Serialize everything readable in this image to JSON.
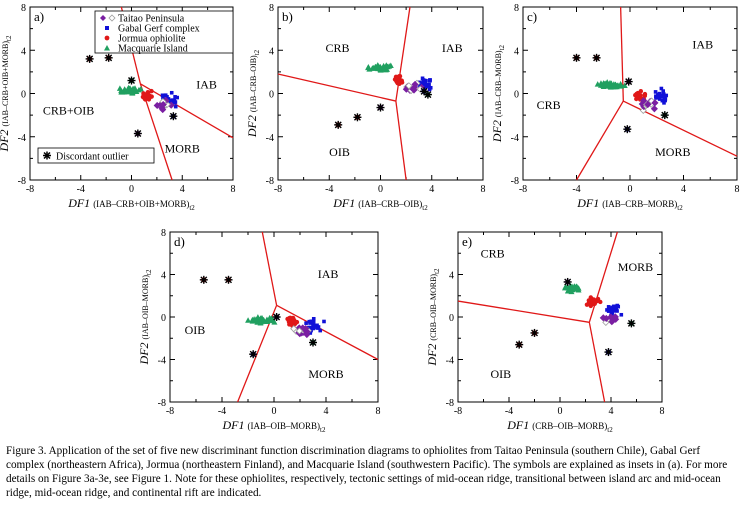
{
  "figure": {
    "legend": {
      "items": [
        {
          "label": "Taitao Peninsula",
          "marker": "diamond-open"
        },
        {
          "label": "Gabal Gerf complex",
          "marker": "square-filled"
        },
        {
          "label": "Jormua ophiolite",
          "marker": "circle-filled"
        },
        {
          "label": "Macquarie Island",
          "marker": "triangle-filled"
        }
      ],
      "outlier_label": "Discordant outlier"
    },
    "colors": {
      "taitao": "#7a1fa2",
      "taitao_open": "#9e9e9e",
      "gabal": "#1010d8",
      "jormua": "#e01818",
      "macquarie": "#20a060",
      "boundary": "#e01818",
      "outlier": "#000000"
    }
  },
  "chart_data": [
    {
      "type": "scatter",
      "panel": "a)",
      "xlabel": {
        "main": "DF1",
        "sub": "(IAB–CRB+OIB+MORB)",
        "suffix": "t2"
      },
      "ylabel": {
        "main": "DF2",
        "sub": "(IAB–CRB+OIB+MORB)",
        "suffix": "t2"
      },
      "xlim": [
        -8,
        8
      ],
      "ylim": [
        -8,
        8
      ],
      "xticks": [
        "-8",
        "-4",
        "0",
        "4",
        "8"
      ],
      "yticks": [
        "8",
        "4",
        "0",
        "-4",
        "-8"
      ],
      "regions": [
        "IAB",
        "CRB+OIB",
        "MORB"
      ],
      "boundaries": [
        [
          [
            0.7,
            0.9
          ],
          [
            -0.8,
            8
          ]
        ],
        [
          [
            0.7,
            0.9
          ],
          [
            8,
            -4.1
          ]
        ],
        [
          [
            0.7,
            0.9
          ],
          [
            3.2,
            -8
          ]
        ]
      ],
      "outliers": [
        [
          -3.3,
          3.2
        ],
        [
          -1.8,
          3.3
        ],
        [
          0.5,
          -3.7
        ],
        [
          3.3,
          -2.1
        ],
        [
          0,
          1.2
        ]
      ]
    },
    {
      "type": "scatter",
      "panel": "b)",
      "xlabel": {
        "main": "DF1",
        "sub": "(IAB–CRB–OIB)",
        "suffix": "t2"
      },
      "ylabel": {
        "main": "DF2",
        "sub": "(IAB–CRB–OIB)",
        "suffix": "t2"
      },
      "xlim": [
        -8,
        8
      ],
      "ylim": [
        -8,
        8
      ],
      "xticks": [
        "-8",
        "-4",
        "0",
        "4",
        "8"
      ],
      "yticks": [
        "8",
        "4",
        "0",
        "-4",
        "-8"
      ],
      "regions": [
        "CRB",
        "IAB",
        "OIB"
      ],
      "boundaries": [
        [
          [
            1.2,
            -0.7
          ],
          [
            -8,
            1.8
          ]
        ],
        [
          [
            1.2,
            -0.7
          ],
          [
            2.3,
            8
          ]
        ],
        [
          [
            1.2,
            -0.7
          ],
          [
            2.0,
            -8
          ]
        ]
      ],
      "outliers": [
        [
          -3.3,
          -2.9
        ],
        [
          -1.8,
          -2.2
        ],
        [
          0,
          -1.3
        ],
        [
          3.4,
          0.2
        ],
        [
          3.7,
          -0.1
        ]
      ]
    },
    {
      "type": "scatter",
      "panel": "c)",
      "xlabel": {
        "main": "DF1",
        "sub": "(IAB–CRB–MORB)",
        "suffix": "t2"
      },
      "ylabel": {
        "main": "DF2",
        "sub": "(IAB–CRB–MORB)",
        "suffix": "t2"
      },
      "xlim": [
        -8,
        8
      ],
      "ylim": [
        -8,
        8
      ],
      "xticks": [
        "-8",
        "-4",
        "0",
        "4",
        "8"
      ],
      "yticks": [
        "8",
        "4",
        "0",
        "-4",
        "-8"
      ],
      "regions": [
        "IAB",
        "CRB",
        "MORB"
      ],
      "boundaries": [
        [
          [
            -0.5,
            -0.7
          ],
          [
            -0.7,
            8
          ]
        ],
        [
          [
            -0.5,
            -0.7
          ],
          [
            8,
            -5.8
          ]
        ],
        [
          [
            -0.5,
            -0.7
          ],
          [
            -4.0,
            -8
          ]
        ]
      ],
      "outliers": [
        [
          -4.0,
          3.3
        ],
        [
          -2.5,
          3.3
        ],
        [
          -0.1,
          1.1
        ],
        [
          -0.2,
          -3.3
        ],
        [
          2.6,
          -2.0
        ]
      ]
    },
    {
      "type": "scatter",
      "panel": "d)",
      "xlabel": {
        "main": "DF1",
        "sub": "(IAB–OIB–MORB)",
        "suffix": "t2"
      },
      "ylabel": {
        "main": "DF2",
        "sub": "(IAB–OIB–MORB)",
        "suffix": "t2"
      },
      "xlim": [
        -8,
        8
      ],
      "ylim": [
        -8,
        8
      ],
      "xticks": [
        "-8",
        "-4",
        "0",
        "4",
        "8"
      ],
      "yticks": [
        "8",
        "4",
        "0",
        "-4",
        "-8"
      ],
      "regions": [
        "IAB",
        "OIB",
        "MORB"
      ],
      "boundaries": [
        [
          [
            0.2,
            1.1
          ],
          [
            -0.9,
            8
          ]
        ],
        [
          [
            0.2,
            1.1
          ],
          [
            8,
            -4.0
          ]
        ],
        [
          [
            0.2,
            1.1
          ],
          [
            -2.8,
            -8
          ]
        ]
      ],
      "outliers": [
        [
          -5.4,
          3.5
        ],
        [
          -3.5,
          3.5
        ],
        [
          0.2,
          0
        ],
        [
          -1.6,
          -3.5
        ],
        [
          3.0,
          -2.4
        ]
      ]
    },
    {
      "type": "scatter",
      "panel": "e)",
      "xlabel": {
        "main": "DF1",
        "sub": "(CRB–OIB–MORB)",
        "suffix": "t2"
      },
      "ylabel": {
        "main": "DF2",
        "sub": "(CRB–OIB–MORB)",
        "suffix": "t2"
      },
      "xlim": [
        -8,
        8
      ],
      "ylim": [
        -8,
        8
      ],
      "xticks": [
        "-8",
        "-4",
        "0",
        "4",
        "8"
      ],
      "yticks": [
        "4",
        "0",
        "-4",
        "-8"
      ],
      "regions": [
        "CRB",
        "MORB",
        "OIB"
      ],
      "boundaries": [
        [
          [
            2.3,
            -0.5
          ],
          [
            -8,
            1.5
          ]
        ],
        [
          [
            2.3,
            -0.5
          ],
          [
            4.5,
            8
          ]
        ],
        [
          [
            2.3,
            -0.5
          ],
          [
            3.5,
            -8
          ]
        ]
      ],
      "outliers": [
        [
          -3.2,
          -2.6
        ],
        [
          -2.0,
          -1.5
        ],
        [
          0.6,
          3.3
        ],
        [
          3.8,
          -3.3
        ],
        [
          5.6,
          -0.6
        ]
      ]
    }
  ],
  "caption": "Figure 3. Application of the set of five new discriminant function discrimination diagrams to ophiolites from Taitao Peninsula (southern Chile), Gabal Gerf complex (northeastern Africa), Jormua (northeastern Finland), and Macquarie Island (southwestern Pacific). The symbols are explained as insets in (a). For more details on Figure 3a-3e, see Figure 1. Note for these ophiolites, respectively, tectonic settings of mid-ocean ridge, transitional between island arc and mid-ocean ridge, mid-ocean ridge, and continental rift are indicated."
}
